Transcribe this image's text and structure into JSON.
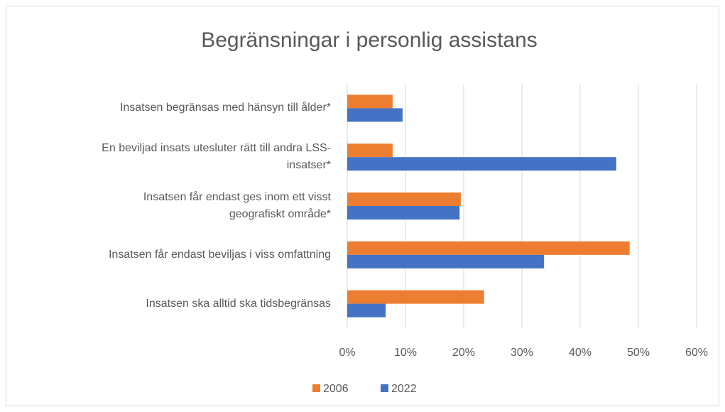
{
  "chart_data": {
    "type": "hbar",
    "title": "Begränsningar i personlig assistans",
    "categories": [
      "Insatsen begränsas med hänsyn till ålder*",
      "En beviljad insats utesluter rätt till andra LSS-\ninsatser*",
      "Insatsen får endast ges inom ett visst\ngeografiskt område*",
      "Insatsen får endast beviljas i viss omfattning",
      "Insatsen ska alltid ska tidsbegränsas"
    ],
    "series": [
      {
        "name": "2006",
        "color": "#ed7d31",
        "values": [
          7.8,
          7.8,
          19.5,
          48.5,
          23.5
        ]
      },
      {
        "name": "2022",
        "color": "#4472c4",
        "values": [
          9.5,
          46.2,
          19.3,
          33.8,
          6.6
        ]
      }
    ],
    "xlim": [
      0,
      60
    ],
    "xticks": [
      {
        "value": 0,
        "label": "0%"
      },
      {
        "value": 10,
        "label": "10%"
      },
      {
        "value": 20,
        "label": "20%"
      },
      {
        "value": 30,
        "label": "30%"
      },
      {
        "value": 40,
        "label": "40%"
      },
      {
        "value": 50,
        "label": "50%"
      },
      {
        "value": 60,
        "label": "60%"
      }
    ],
    "grid": true,
    "legend": "bottom"
  }
}
